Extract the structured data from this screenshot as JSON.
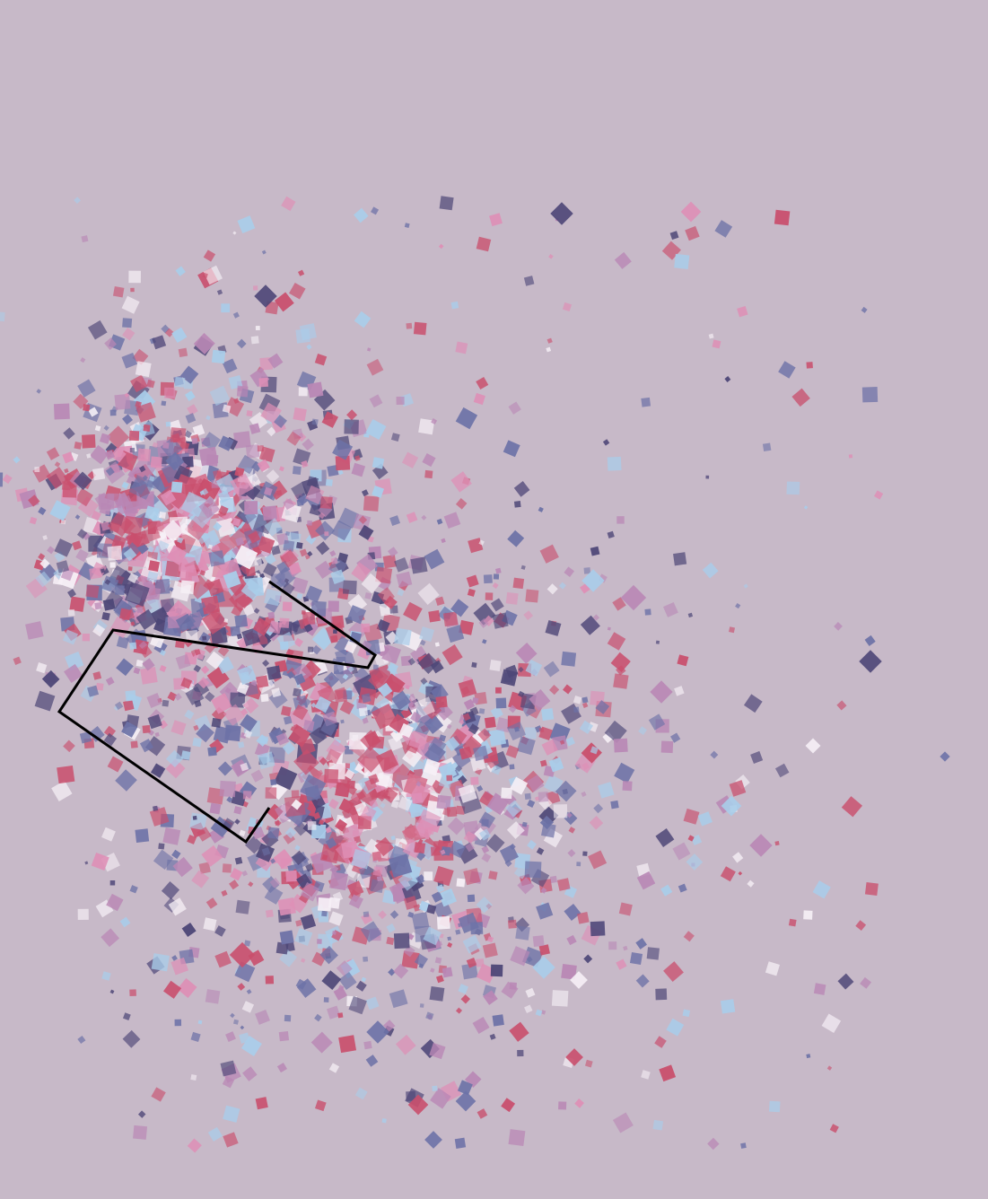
{
  "artwork": {
    "background_color": "#c7b9c8",
    "outline_color": "#000000",
    "palette": [
      "#c94f6d",
      "#d46f8c",
      "#de8fb6",
      "#b987b5",
      "#6d72a7",
      "#4d4677",
      "#f6f0f6",
      "#a9cdea"
    ],
    "cluster_count": 2,
    "description_icon": "confetti-squares-icon"
  }
}
